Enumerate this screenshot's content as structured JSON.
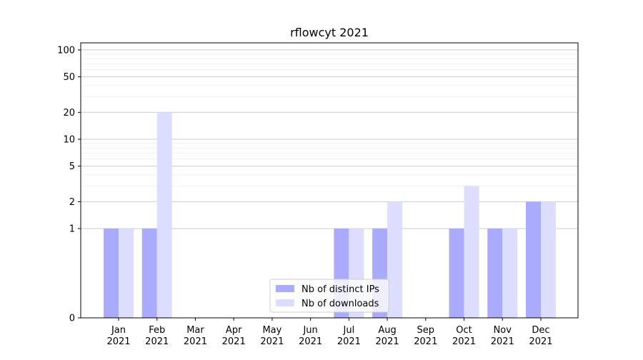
{
  "chart_data": {
    "type": "bar",
    "title": "rflowcyt 2021",
    "xlabel": "",
    "ylabel": "",
    "categories": [
      {
        "month": "Jan",
        "year": "2021"
      },
      {
        "month": "Feb",
        "year": "2021"
      },
      {
        "month": "Mar",
        "year": "2021"
      },
      {
        "month": "Apr",
        "year": "2021"
      },
      {
        "month": "May",
        "year": "2021"
      },
      {
        "month": "Jun",
        "year": "2021"
      },
      {
        "month": "Jul",
        "year": "2021"
      },
      {
        "month": "Aug",
        "year": "2021"
      },
      {
        "month": "Sep",
        "year": "2021"
      },
      {
        "month": "Oct",
        "year": "2021"
      },
      {
        "month": "Nov",
        "year": "2021"
      },
      {
        "month": "Dec",
        "year": "2021"
      }
    ],
    "series": [
      {
        "name": "Nb of distinct IPs",
        "color": "#aaaaff",
        "values": [
          1,
          1,
          0,
          0,
          0,
          0,
          1,
          1,
          0,
          1,
          1,
          2
        ]
      },
      {
        "name": "Nb of downloads",
        "color": "#ddddff",
        "values": [
          1,
          20,
          0,
          0,
          0,
          0,
          1,
          2,
          0,
          3,
          1,
          2
        ]
      }
    ],
    "y_scale": "symlog",
    "ylim": [
      0,
      120
    ],
    "y_ticks": [
      0,
      1,
      2,
      5,
      10,
      20,
      50,
      100
    ],
    "y_tick_labels": [
      "0",
      "1",
      "2",
      "5",
      "10",
      "20",
      "50",
      "100"
    ],
    "grid": true,
    "legend_position": "bottom-center"
  }
}
